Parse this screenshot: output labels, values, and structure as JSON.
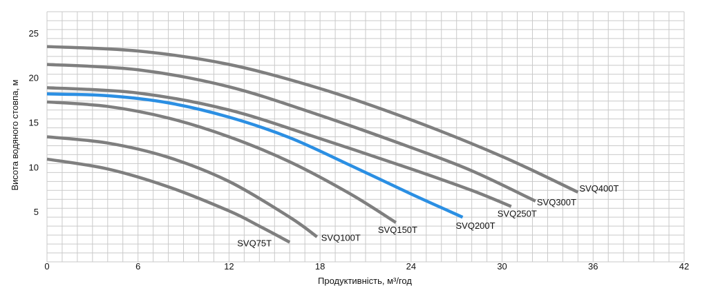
{
  "chart_data": {
    "type": "line",
    "xlabel": "Продуктивність, м³/год",
    "ylabel": "Висота водяного стовпа, м",
    "xlim": [
      0,
      42
    ],
    "ylim": [
      0,
      28
    ],
    "x_ticks": [
      0,
      6,
      12,
      18,
      24,
      30,
      36,
      42
    ],
    "y_ticks": [
      5,
      10,
      15,
      20,
      25
    ],
    "grid": true,
    "legend": "labels at curve ends",
    "series": [
      {
        "name": "SVQ75T",
        "color": "#7f7f7f",
        "x": [
          0,
          4,
          8,
          12,
          14,
          16
        ],
        "y": [
          11.5,
          10.4,
          8.4,
          5.7,
          4.0,
          2.2
        ]
      },
      {
        "name": "SVQ100T",
        "color": "#7f7f7f",
        "x": [
          0,
          4,
          8,
          12,
          16,
          17.8
        ],
        "y": [
          14.0,
          13.3,
          11.7,
          9.0,
          5.0,
          2.8
        ]
      },
      {
        "name": "SVQ150T",
        "color": "#7f7f7f",
        "x": [
          0,
          4,
          8,
          12,
          16,
          20,
          23
        ],
        "y": [
          17.9,
          17.4,
          16.1,
          14.0,
          11.2,
          7.6,
          4.4
        ]
      },
      {
        "name": "SVQ200T",
        "color": "#2b8fe3",
        "x": [
          0,
          4,
          8,
          12,
          16,
          20,
          24,
          27.4
        ],
        "y": [
          18.8,
          18.6,
          17.8,
          16.2,
          13.9,
          10.8,
          7.6,
          5.0
        ]
      },
      {
        "name": "SVQ250T",
        "color": "#7f7f7f",
        "x": [
          0,
          6,
          12,
          18,
          24,
          28,
          30.6
        ],
        "y": [
          19.5,
          18.9,
          17.0,
          13.8,
          10.4,
          8.0,
          6.2
        ]
      },
      {
        "name": "SVQ300T",
        "color": "#7f7f7f",
        "x": [
          0,
          6,
          12,
          18,
          24,
          28,
          32.2
        ],
        "y": [
          22.1,
          21.5,
          19.6,
          16.4,
          12.8,
          10.2,
          6.8
        ]
      },
      {
        "name": "SVQ400T",
        "color": "#7f7f7f",
        "x": [
          0,
          6,
          12,
          18,
          24,
          30,
          35
        ],
        "y": [
          24.1,
          23.6,
          22.1,
          19.4,
          15.9,
          11.8,
          7.8
        ]
      }
    ]
  }
}
